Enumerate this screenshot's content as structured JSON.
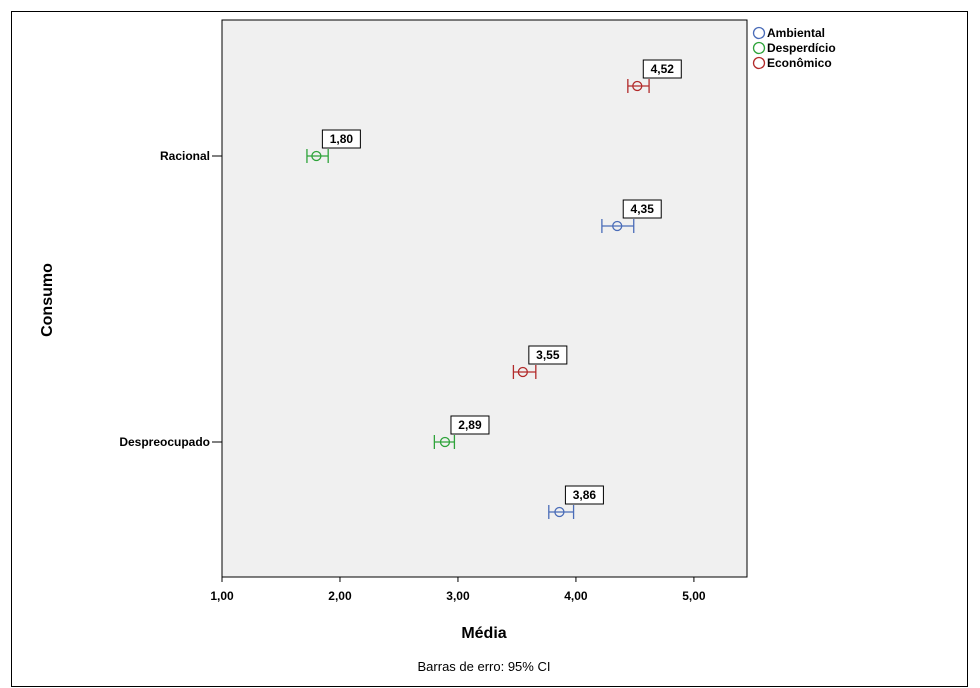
{
  "chart_data": {
    "type": "scatter",
    "subtype": "error-bar",
    "orientation": "horizontal",
    "xlabel": "Média",
    "ylabel": "Consumo",
    "xlim": [
      1.0,
      5.45
    ],
    "x_ticks": [
      "1,00",
      "2,00",
      "3,00",
      "4,00",
      "5,00"
    ],
    "x_tick_values": [
      1,
      2,
      3,
      4,
      5
    ],
    "categories": [
      "Racional",
      "Despreocupado"
    ],
    "footnote": "Barras de erro: 95% CI",
    "legend_position": "top-right outside plot",
    "plot_background": "#f0f0f0",
    "grid": false,
    "series": [
      {
        "name": "Ambiental",
        "color": "#4a6cb8",
        "points": [
          {
            "category": "Racional",
            "mean": 4.35,
            "label": "4,35",
            "ci": [
              4.22,
              4.49
            ]
          },
          {
            "category": "Despreocupado",
            "mean": 3.86,
            "label": "3,86",
            "ci": [
              3.77,
              3.98
            ]
          }
        ]
      },
      {
        "name": "Desperdício",
        "color": "#2ea33a",
        "points": [
          {
            "category": "Racional",
            "mean": 1.8,
            "label": "1,80",
            "ci": [
              1.72,
              1.9
            ]
          },
          {
            "category": "Despreocupado",
            "mean": 2.89,
            "label": "2,89",
            "ci": [
              2.8,
              2.97
            ]
          }
        ]
      },
      {
        "name": "Econômico",
        "color": "#b22a2a",
        "points": [
          {
            "category": "Racional",
            "mean": 4.52,
            "label": "4,52",
            "ci": [
              4.44,
              4.62
            ]
          },
          {
            "category": "Despreocupado",
            "mean": 3.55,
            "label": "3,55",
            "ci": [
              3.47,
              3.66
            ]
          }
        ]
      }
    ]
  }
}
